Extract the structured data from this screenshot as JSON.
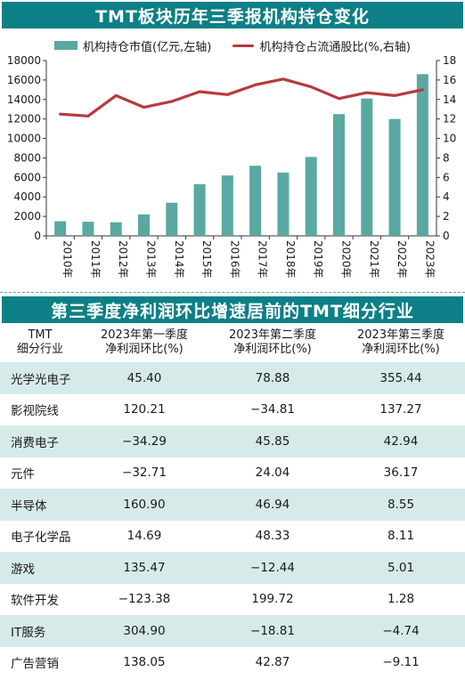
{
  "top_title": "TMT板块历年三季报机构持仓变化",
  "legend": {
    "bar": "机构持仓市值(亿元,左轴)",
    "line": "机构持仓占流通股比(%,右轴)"
  },
  "colors": {
    "banner": "#0d7f86",
    "bar": "#5aa8a1",
    "line": "#b83a3e",
    "row_shade": "#d6ebe9"
  },
  "chart_data": {
    "type": "bar+line",
    "categories": [
      "2010年",
      "2011年",
      "2012年",
      "2013年",
      "2014年",
      "2015年",
      "2016年",
      "2017年",
      "2018年",
      "2019年",
      "2020年",
      "2021年",
      "2022年",
      "2023年"
    ],
    "series": [
      {
        "name": "机构持仓市值(亿元,左轴)",
        "type": "bar",
        "axis": "left",
        "values": [
          1500,
          1450,
          1400,
          2200,
          3400,
          5300,
          6200,
          7200,
          6500,
          8100,
          12500,
          14100,
          12000,
          16600
        ]
      },
      {
        "name": "机构持仓占流通股比(%,右轴)",
        "type": "line",
        "axis": "right",
        "values": [
          12.5,
          12.3,
          14.4,
          13.2,
          13.8,
          14.8,
          14.5,
          15.5,
          16.1,
          15.3,
          14.1,
          14.7,
          14.4,
          15.0
        ]
      }
    ],
    "y_left": {
      "min": 0,
      "max": 18000,
      "ticks": [
        0,
        2000,
        4000,
        6000,
        8000,
        10000,
        12000,
        14000,
        16000,
        18000
      ]
    },
    "y_right": {
      "min": 0,
      "max": 18,
      "ticks": [
        0,
        2,
        4,
        6,
        8,
        10,
        12,
        14,
        16,
        18
      ]
    },
    "grid": false,
    "legend_position": "top"
  },
  "table_title": "第三季度净利润环比增速居前的TMT细分行业",
  "table": {
    "headers": [
      [
        "TMT",
        "细分行业"
      ],
      [
        "2023年第一季度",
        "净利润环比(%)"
      ],
      [
        "2023年第二季度",
        "净利润环比(%)"
      ],
      [
        "2023年第三季度",
        "净利润环比(%)"
      ]
    ],
    "rows": [
      [
        "光学光电子",
        "45.40",
        "78.88",
        "355.44"
      ],
      [
        "影视院线",
        "120.21",
        "−34.81",
        "137.27"
      ],
      [
        "消费电子",
        "−34.29",
        "45.85",
        "42.94"
      ],
      [
        "元件",
        "−32.71",
        "24.04",
        "36.17"
      ],
      [
        "半导体",
        "160.90",
        "46.94",
        "8.55"
      ],
      [
        "电子化学品",
        "14.69",
        "48.33",
        "8.11"
      ],
      [
        "游戏",
        "135.47",
        "−12.44",
        "5.01"
      ],
      [
        "软件开发",
        "−123.38",
        "199.72",
        "1.28"
      ],
      [
        "IT服务",
        "304.90",
        "−18.81",
        "−4.74"
      ],
      [
        "广告营销",
        "138.05",
        "42.87",
        "−9.11"
      ]
    ]
  }
}
